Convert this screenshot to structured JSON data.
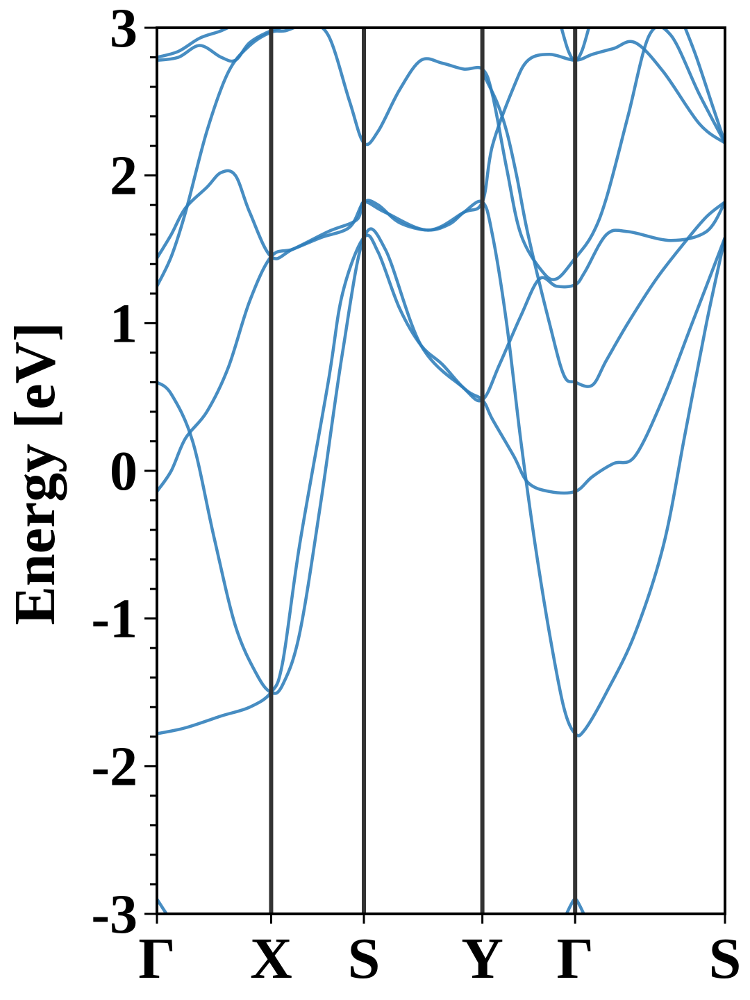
{
  "chart_data": {
    "type": "line",
    "ylabel": "Energy [eV]",
    "ylim": [
      -3,
      3
    ],
    "yticks": [
      -3,
      -2,
      -1,
      0,
      1,
      2,
      3
    ],
    "ytick_labels": [
      "-3",
      "-2",
      "-1",
      "0",
      "1",
      "2",
      "3"
    ],
    "x_path": [
      0,
      0.8,
      1.45,
      2.28,
      2.93,
      3.98
    ],
    "x_labels": [
      "Γ",
      "X",
      "S",
      "Y",
      "Γ",
      "S"
    ],
    "xlim": [
      0,
      3.98
    ],
    "grid": false,
    "colors": {
      "band": "#2e7dba",
      "kpath_line": "#333333",
      "axis": "#000000"
    },
    "bands": [
      {
        "points": [
          [
            0,
            -1.78
          ],
          [
            0.2,
            -1.74
          ],
          [
            0.45,
            -1.66
          ],
          [
            0.65,
            -1.6
          ],
          [
            0.8,
            -1.5
          ],
          [
            0.88,
            -1.3
          ],
          [
            1.0,
            -0.5
          ],
          [
            1.2,
            0.6
          ],
          [
            1.3,
            1.2
          ],
          [
            1.45,
            1.58
          ],
          [
            1.55,
            1.48
          ],
          [
            1.7,
            1.1
          ],
          [
            1.85,
            0.85
          ],
          [
            2.0,
            0.72
          ],
          [
            2.15,
            0.56
          ],
          [
            2.28,
            0.48
          ],
          [
            2.4,
            0.72
          ],
          [
            2.55,
            1.05
          ],
          [
            2.68,
            1.3
          ],
          [
            2.8,
            1.25
          ],
          [
            2.93,
            1.26
          ],
          [
            3.0,
            1.35
          ],
          [
            3.15,
            1.6
          ],
          [
            3.3,
            1.62
          ],
          [
            3.6,
            1.56
          ],
          [
            3.85,
            1.62
          ],
          [
            3.98,
            1.82
          ]
        ]
      },
      {
        "points": [
          [
            0,
            0.6
          ],
          [
            0.1,
            0.52
          ],
          [
            0.25,
            0.2
          ],
          [
            0.4,
            -0.45
          ],
          [
            0.55,
            -1.05
          ],
          [
            0.7,
            -1.38
          ],
          [
            0.8,
            -1.5
          ],
          [
            0.88,
            -1.45
          ],
          [
            1.0,
            -1.1
          ],
          [
            1.15,
            -0.2
          ],
          [
            1.3,
            0.8
          ],
          [
            1.45,
            1.58
          ],
          [
            1.6,
            1.5
          ],
          [
            1.85,
            0.85
          ],
          [
            2.15,
            0.56
          ],
          [
            2.28,
            0.48
          ],
          [
            2.35,
            0.35
          ],
          [
            2.5,
            0.1
          ],
          [
            2.6,
            -0.08
          ],
          [
            2.75,
            -0.14
          ],
          [
            2.93,
            -0.14
          ],
          [
            3.05,
            -0.04
          ],
          [
            3.2,
            0.05
          ],
          [
            3.35,
            0.1
          ],
          [
            3.55,
            0.5
          ],
          [
            3.75,
            1.0
          ],
          [
            3.98,
            1.58
          ]
        ]
      },
      {
        "points": [
          [
            0,
            -0.14
          ],
          [
            0.1,
            0.0
          ],
          [
            0.2,
            0.22
          ],
          [
            0.35,
            0.4
          ],
          [
            0.5,
            0.7
          ],
          [
            0.65,
            1.15
          ],
          [
            0.8,
            1.45
          ],
          [
            0.95,
            1.5
          ],
          [
            1.15,
            1.58
          ],
          [
            1.35,
            1.65
          ],
          [
            1.45,
            1.82
          ],
          [
            1.55,
            1.8
          ],
          [
            1.7,
            1.68
          ],
          [
            1.9,
            1.63
          ],
          [
            2.05,
            1.67
          ],
          [
            2.15,
            1.75
          ],
          [
            2.28,
            1.82
          ],
          [
            2.35,
            1.6
          ],
          [
            2.45,
            1.0
          ],
          [
            2.55,
            0.2
          ],
          [
            2.65,
            -0.5
          ],
          [
            2.75,
            -1.1
          ],
          [
            2.85,
            -1.6
          ],
          [
            2.93,
            -1.78
          ],
          [
            3.0,
            -1.75
          ],
          [
            3.15,
            -1.5
          ],
          [
            3.35,
            -1.1
          ],
          [
            3.55,
            -0.5
          ],
          [
            3.7,
            0.25
          ],
          [
            3.85,
            1.0
          ],
          [
            3.98,
            1.58
          ]
        ]
      },
      {
        "points": [
          [
            0,
            1.44
          ],
          [
            0.1,
            1.6
          ],
          [
            0.2,
            1.78
          ],
          [
            0.35,
            1.92
          ],
          [
            0.45,
            2.02
          ],
          [
            0.55,
            2.0
          ],
          [
            0.65,
            1.75
          ],
          [
            0.8,
            1.45
          ],
          [
            0.95,
            1.5
          ],
          [
            1.2,
            1.62
          ],
          [
            1.4,
            1.7
          ],
          [
            1.45,
            1.82
          ],
          [
            1.6,
            1.75
          ],
          [
            1.9,
            1.63
          ],
          [
            2.15,
            1.75
          ],
          [
            2.28,
            1.82
          ],
          [
            2.35,
            2.2
          ],
          [
            2.5,
            2.6
          ],
          [
            2.6,
            2.78
          ],
          [
            2.75,
            2.82
          ],
          [
            2.93,
            2.78
          ],
          [
            3.05,
            2.82
          ],
          [
            3.2,
            2.86
          ],
          [
            3.35,
            2.9
          ],
          [
            3.55,
            2.7
          ],
          [
            3.8,
            2.35
          ],
          [
            3.98,
            2.22
          ]
        ]
      },
      {
        "points": [
          [
            0,
            1.25
          ],
          [
            0.1,
            1.45
          ],
          [
            0.2,
            1.75
          ],
          [
            0.35,
            2.3
          ],
          [
            0.5,
            2.7
          ],
          [
            0.65,
            2.88
          ],
          [
            0.8,
            2.97
          ],
          [
            0.9,
            2.98
          ],
          [
            1.05,
            3.02
          ],
          [
            1.2,
            2.95
          ],
          [
            1.35,
            2.5
          ],
          [
            1.45,
            2.22
          ],
          [
            1.55,
            2.3
          ],
          [
            1.7,
            2.58
          ],
          [
            1.85,
            2.78
          ],
          [
            2.0,
            2.76
          ],
          [
            2.15,
            2.72
          ],
          [
            2.28,
            2.72
          ],
          [
            2.35,
            2.55
          ],
          [
            2.45,
            2.05
          ],
          [
            2.55,
            1.6
          ],
          [
            2.7,
            1.35
          ],
          [
            2.8,
            1.3
          ],
          [
            2.93,
            1.44
          ],
          [
            3.05,
            1.6
          ],
          [
            3.15,
            1.85
          ],
          [
            3.3,
            2.4
          ],
          [
            3.45,
            2.95
          ],
          [
            3.6,
            2.95
          ],
          [
            3.8,
            2.55
          ],
          [
            3.98,
            2.22
          ]
        ]
      },
      {
        "points": [
          [
            0,
            2.8
          ],
          [
            0.15,
            2.84
          ],
          [
            0.3,
            2.93
          ],
          [
            0.45,
            2.98
          ],
          [
            0.6,
            3.05
          ]
        ]
      },
      {
        "points": [
          [
            0,
            2.78
          ],
          [
            0.15,
            2.8
          ],
          [
            0.3,
            2.88
          ],
          [
            0.45,
            2.8
          ],
          [
            0.55,
            2.78
          ],
          [
            0.65,
            2.9
          ],
          [
            0.8,
            2.98
          ],
          [
            0.95,
            3.02
          ]
        ]
      },
      {
        "points": [
          [
            2.28,
            2.7
          ],
          [
            2.38,
            2.5
          ],
          [
            2.45,
            2.3
          ],
          [
            2.52,
            2.0
          ],
          [
            2.6,
            1.6
          ],
          [
            2.75,
            1.0
          ],
          [
            2.85,
            0.65
          ],
          [
            2.93,
            0.6
          ],
          [
            3.05,
            0.58
          ],
          [
            3.15,
            0.75
          ],
          [
            3.3,
            1.0
          ],
          [
            3.5,
            1.3
          ],
          [
            3.7,
            1.55
          ],
          [
            3.85,
            1.72
          ],
          [
            3.98,
            1.82
          ]
        ]
      },
      {
        "points": [
          [
            2.82,
            3.05
          ],
          [
            2.88,
            2.85
          ],
          [
            2.93,
            2.78
          ],
          [
            2.98,
            2.85
          ],
          [
            3.04,
            3.05
          ]
        ]
      },
      {
        "points": [
          [
            3.68,
            3.05
          ],
          [
            3.78,
            2.8
          ],
          [
            3.9,
            2.45
          ],
          [
            3.98,
            2.22
          ]
        ]
      },
      {
        "points": [
          [
            0,
            -2.9
          ],
          [
            0.04,
            -2.96
          ],
          [
            0.08,
            -3.02
          ]
        ]
      },
      {
        "points": [
          [
            2.86,
            -3.02
          ],
          [
            2.9,
            -2.94
          ],
          [
            2.93,
            -2.9
          ],
          [
            2.96,
            -2.94
          ],
          [
            3.0,
            -3.02
          ]
        ]
      }
    ]
  }
}
